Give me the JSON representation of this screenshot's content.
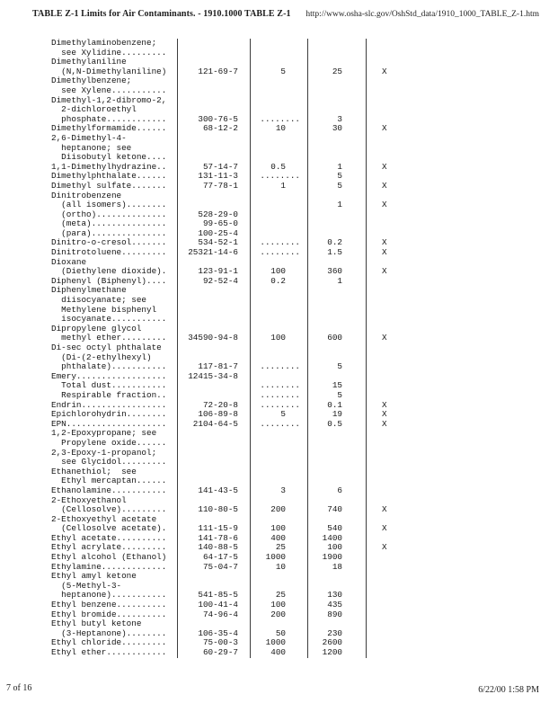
{
  "header": {
    "title": "TABLE Z-1 Limits for Air Contaminants. - 1910.1000 TABLE Z-1",
    "url": "http://www.osha-slc.gov/OshStd_data/1910_1000_TABLE_Z-1.htm"
  },
  "footer": {
    "page_number": "7 of 16",
    "timestamp": "6/22/00 1:58 PM"
  },
  "table": {
    "lines": [
      {
        "substance": "Dimethylaminobenzene;"
      },
      {
        "substance": "  see Xylidine........."
      },
      {
        "substance": "Dimethylaniline"
      },
      {
        "substance": "  (N,N-Dimethylaniline)",
        "cas": "121-69-7",
        "ppm": "5",
        "mgm3": "25",
        "skin": "X"
      },
      {
        "substance": "Dimethylbenzene;"
      },
      {
        "substance": "  see Xylene..........."
      },
      {
        "substance": "Dimethyl-1,2-dibromo-2,"
      },
      {
        "substance": "  2-dichloroethyl"
      },
      {
        "substance": "  phosphate............",
        "cas": "300-76-5",
        "ppm": "........",
        "mgm3": "3"
      },
      {
        "substance": "Dimethylformamide......",
        "cas": "68-12-2",
        "ppm": "10",
        "mgm3": "30",
        "skin": "X"
      },
      {
        "substance": "2,6-Dimethyl-4-"
      },
      {
        "substance": "  heptanone; see"
      },
      {
        "substance": "  Diisobutyl ketone...."
      },
      {
        "substance": "1,1-Dimethylhydrazine..",
        "cas": "57-14-7",
        "ppm": "0.5",
        "mgm3": "1",
        "skin": "X"
      },
      {
        "substance": "Dimethylphthalate......",
        "cas": "131-11-3",
        "ppm": "........",
        "mgm3": "5"
      },
      {
        "substance": "Dimethyl sulfate.......",
        "cas": "77-78-1",
        "ppm": "1",
        "mgm3": "5",
        "skin": "X"
      },
      {
        "substance": "Dinitrobenzene"
      },
      {
        "substance": "  (all isomers)........",
        "mgm3": "1",
        "skin": "X"
      },
      {
        "substance": "  (ortho)..............",
        "cas": "528-29-0"
      },
      {
        "substance": "  (meta)...............",
        "cas": "99-65-0"
      },
      {
        "substance": "  (para)...............",
        "cas": "100-25-4"
      },
      {
        "substance": "Dinitro-o-cresol.......",
        "cas": "534-52-1",
        "ppm": "........",
        "mgm3": "0.2",
        "skin": "X"
      },
      {
        "substance": "Dinitrotoluene.........",
        "cas": "25321-14-6",
        "ppm": "........",
        "mgm3": "1.5",
        "skin": "X"
      },
      {
        "substance": "Dioxane"
      },
      {
        "substance": "  (Diethylene dioxide).",
        "cas": "123-91-1",
        "ppm": "100",
        "mgm3": "360",
        "skin": "X"
      },
      {
        "substance": "Diphenyl (Biphenyl)....",
        "cas": "92-52-4",
        "ppm": "0.2",
        "mgm3": "1"
      },
      {
        "substance": "Diphenylmethane"
      },
      {
        "substance": "  diisocyanate; see"
      },
      {
        "substance": "  Methylene bisphenyl"
      },
      {
        "substance": "  isocyanate..........."
      },
      {
        "substance": "Dipropylene glycol"
      },
      {
        "substance": "  methyl ether.........",
        "cas": "34590-94-8",
        "ppm": "100",
        "mgm3": "600",
        "skin": "X"
      },
      {
        "substance": "Di-sec octyl phthalate"
      },
      {
        "substance": "  (Di-(2-ethylhexyl)"
      },
      {
        "substance": "  phthalate)...........",
        "cas": "117-81-7",
        "ppm": "........",
        "mgm3": "5"
      },
      {
        "substance": "Emery..................",
        "cas": "12415-34-8"
      },
      {
        "substance": "  Total dust...........",
        "ppm": "........",
        "mgm3": "15"
      },
      {
        "substance": "  Respirable fraction..",
        "ppm": "........",
        "mgm3": "5"
      },
      {
        "substance": "Endrin.................",
        "cas": "72-20-8",
        "ppm": "........",
        "mgm3": "0.1",
        "skin": "X"
      },
      {
        "substance": "Epichlorohydrin........",
        "cas": "106-89-8",
        "ppm": "5",
        "mgm3": "19",
        "skin": "X"
      },
      {
        "substance": "EPN....................",
        "cas": "2104-64-5",
        "ppm": "........",
        "mgm3": "0.5",
        "skin": "X"
      },
      {
        "substance": "1,2-Epoxypropane; see"
      },
      {
        "substance": "  Propylene oxide......"
      },
      {
        "substance": "2,3-Epoxy-1-propanol;"
      },
      {
        "substance": "  see Glycidol........."
      },
      {
        "substance": "Ethanethiol;  see"
      },
      {
        "substance": "  Ethyl mercaptan......"
      },
      {
        "substance": "Ethanolamine...........",
        "cas": "141-43-5",
        "ppm": "3",
        "mgm3": "6"
      },
      {
        "substance": "2-Ethoxyethanol"
      },
      {
        "substance": "  (Cellosolve).........",
        "cas": "110-80-5",
        "ppm": "200",
        "mgm3": "740",
        "skin": "X"
      },
      {
        "substance": "2-Ethoxyethyl acetate"
      },
      {
        "substance": "  (Cellosolve acetate).",
        "cas": "111-15-9",
        "ppm": "100",
        "mgm3": "540",
        "skin": "X"
      },
      {
        "substance": "Ethyl acetate..........",
        "cas": "141-78-6",
        "ppm": "400",
        "mgm3": "1400"
      },
      {
        "substance": "Ethyl acrylate.........",
        "cas": "140-88-5",
        "ppm": "25",
        "mgm3": "100",
        "skin": "X"
      },
      {
        "substance": "Ethyl alcohol (Ethanol)",
        "cas": "64-17-5",
        "ppm": "1000",
        "mgm3": "1900"
      },
      {
        "substance": "Ethylamine.............",
        "cas": "75-04-7",
        "ppm": "10",
        "mgm3": "18"
      },
      {
        "substance": "Ethyl amyl ketone"
      },
      {
        "substance": "  (5-Methyl-3-"
      },
      {
        "substance": "  heptanone)...........",
        "cas": "541-85-5",
        "ppm": "25",
        "mgm3": "130"
      },
      {
        "substance": "Ethyl benzene..........",
        "cas": "100-41-4",
        "ppm": "100",
        "mgm3": "435"
      },
      {
        "substance": "Ethyl bromide..........",
        "cas": "74-96-4",
        "ppm": "200",
        "mgm3": "890"
      },
      {
        "substance": "Ethyl butyl ketone"
      },
      {
        "substance": "  (3-Heptanone)........",
        "cas": "106-35-4",
        "ppm": "50",
        "mgm3": "230"
      },
      {
        "substance": "Ethyl chloride.........",
        "cas": "75-00-3",
        "ppm": "1000",
        "mgm3": "2600"
      },
      {
        "substance": "Ethyl ether............",
        "cas": "60-29-7",
        "ppm": "400",
        "mgm3": "1200"
      }
    ]
  }
}
